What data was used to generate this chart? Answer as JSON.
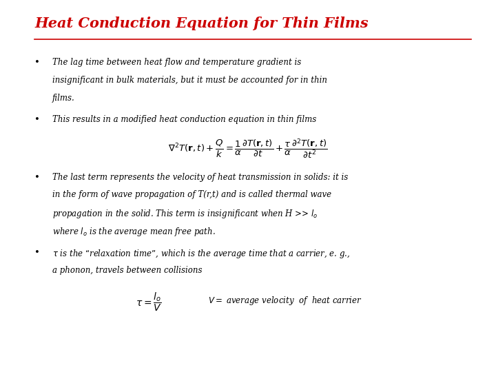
{
  "title": "Heat Conduction Equation for Thin Films",
  "title_color": "#CC0000",
  "title_fontsize": 15,
  "bg_color": "#ffffff",
  "bullet1_line1": "The lag time between heat flow and temperature gradient is",
  "bullet1_line2": "insignificant in bulk materials, but it must be accounted for in thin",
  "bullet1_line3": "films.",
  "bullet2": "This results in a modified heat conduction equation in thin films",
  "eq1": "$\\nabla^2 T(\\mathbf{r},t) + \\dfrac{Q}{k} = \\dfrac{1}{\\alpha}\\dfrac{\\partial T(\\mathbf{r},t)}{\\partial t} + \\dfrac{\\tau}{\\alpha}\\dfrac{\\partial^2 T(\\mathbf{r},t)}{\\partial t^2}$",
  "bullet3_line1": "The last term represents the velocity of heat transmission in solids: it is",
  "bullet3_line2": "in the form of wave propagation of T(r,t) and is called thermal wave",
  "bullet3_line3": "propagation in the solid. This term is insignificant when H >> $l_o$",
  "bullet3_line4": "where $l_o$ is the average mean free path.",
  "bullet4_line1": "$\\tau$ is the “relaxation time”, which is the average time that a carrier, e. g.,",
  "bullet4_line2": "a phonon, travels between collisions",
  "eq2": "$\\tau = \\dfrac{l_o}{V}$",
  "eq2_extra": "$V =$ average velocity  of  heat carrier",
  "text_color": "#000000",
  "text_fontsize": 8.5,
  "eq_fontsize": 9.5
}
